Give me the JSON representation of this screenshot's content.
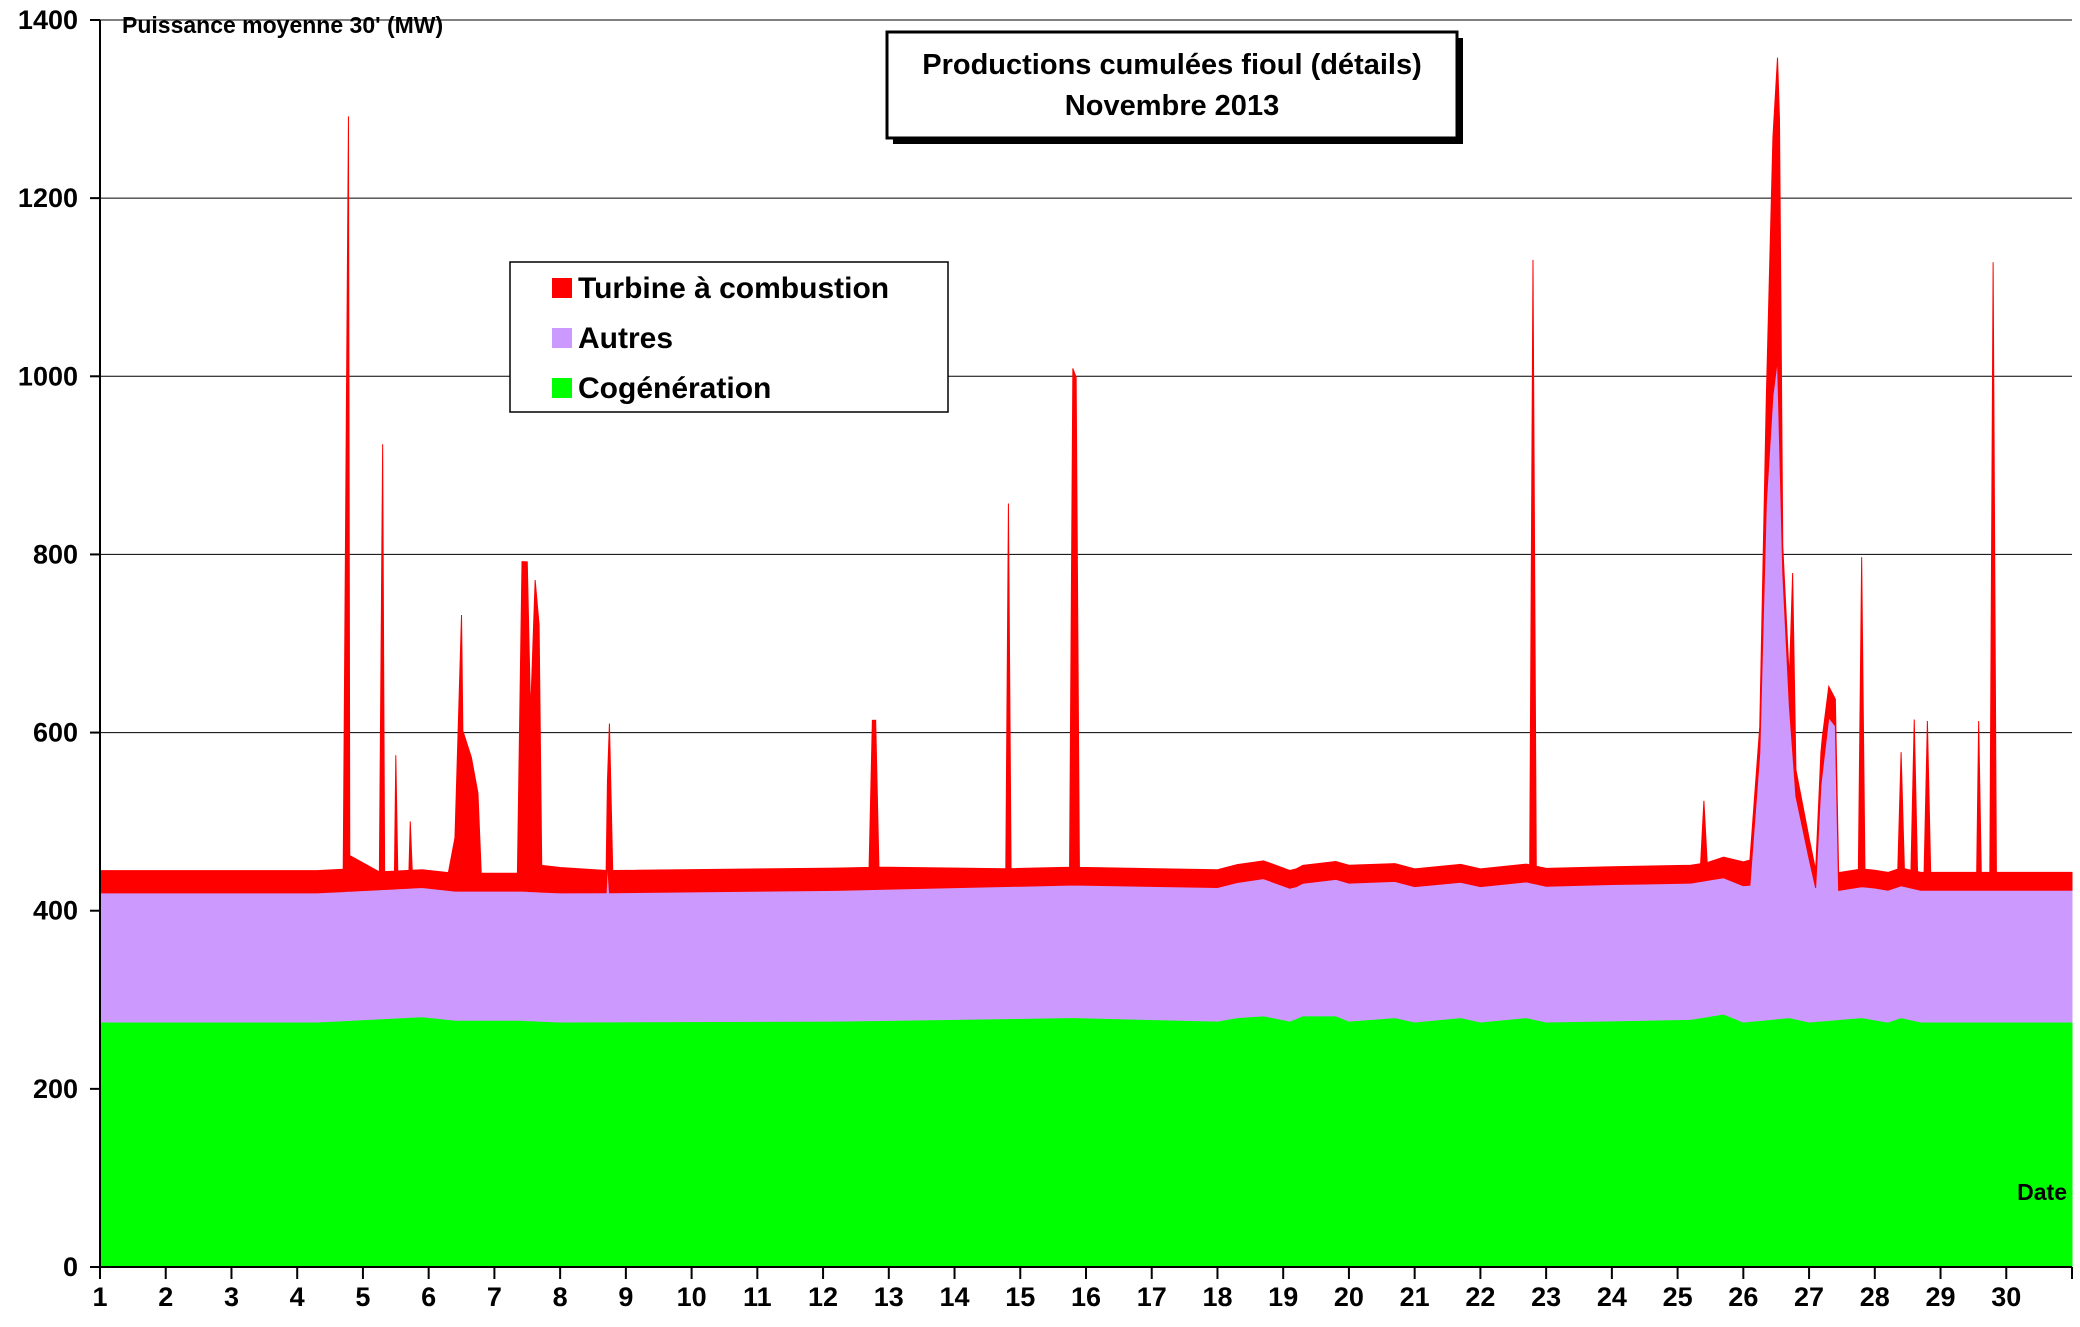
{
  "chart_data": {
    "type": "area",
    "stacked": true,
    "title": "Productions cumulées fioul (détails)",
    "subtitle": "Novembre  2013",
    "ylabel": "Puissance moyenne 30' (MW)",
    "xlabel": "Date",
    "ylim": [
      0,
      1400
    ],
    "yticks": [
      0,
      200,
      400,
      600,
      800,
      1000,
      1200,
      1400
    ],
    "xlim": [
      1,
      31
    ],
    "xticks": [
      1,
      2,
      3,
      4,
      5,
      6,
      7,
      8,
      9,
      10,
      11,
      12,
      13,
      14,
      15,
      16,
      17,
      18,
      19,
      20,
      21,
      22,
      23,
      24,
      25,
      26,
      27,
      28,
      29,
      30
    ],
    "grid": "horizontal",
    "legend_position": "upper-left inside plot",
    "series": [
      {
        "name": "Cogénération",
        "color": "#00ff00",
        "points": [
          [
            1,
            275
          ],
          [
            4.3,
            275
          ],
          [
            5.9,
            281
          ],
          [
            6.4,
            277
          ],
          [
            7.4,
            277
          ],
          [
            8,
            275
          ],
          [
            12.2,
            276
          ],
          [
            15.8,
            280
          ],
          [
            18,
            276
          ],
          [
            18.3,
            280
          ],
          [
            18.7,
            282
          ],
          [
            19.1,
            276
          ],
          [
            19.3,
            282
          ],
          [
            19.8,
            282
          ],
          [
            20,
            276
          ],
          [
            20.7,
            280
          ],
          [
            21,
            275
          ],
          [
            21.7,
            280
          ],
          [
            22,
            275
          ],
          [
            22.7,
            280
          ],
          [
            23,
            275
          ],
          [
            25.2,
            278
          ],
          [
            25.7,
            284
          ],
          [
            26,
            275
          ],
          [
            26.7,
            280
          ],
          [
            27,
            275
          ],
          [
            27.8,
            280
          ],
          [
            28.2,
            275
          ],
          [
            28.4,
            280
          ],
          [
            28.7,
            275
          ],
          [
            31,
            275
          ]
        ]
      },
      {
        "name": "Autres",
        "color": "#cc99ff",
        "points": [
          [
            1,
            145
          ],
          [
            8.7,
            145
          ],
          [
            8.72,
            180
          ],
          [
            8.75,
            145
          ],
          [
            18,
            150
          ],
          [
            18.7,
            154
          ],
          [
            19.2,
            148
          ],
          [
            20,
            155
          ],
          [
            21,
            152
          ],
          [
            22,
            152
          ],
          [
            24,
            153
          ],
          [
            25,
            153
          ],
          [
            26.1,
            153
          ],
          [
            26.25,
            300
          ],
          [
            26.35,
            580
          ],
          [
            26.45,
            700
          ],
          [
            26.52,
            740
          ],
          [
            26.6,
            500
          ],
          [
            26.7,
            350
          ],
          [
            26.8,
            250
          ],
          [
            27.1,
            150
          ],
          [
            27.18,
            265
          ],
          [
            27.3,
            340
          ],
          [
            27.4,
            330
          ],
          [
            27.45,
            145
          ],
          [
            28,
            148
          ],
          [
            31,
            148
          ]
        ]
      },
      {
        "name": "Turbine à combustion",
        "color": "#ff0000",
        "points": [
          [
            1,
            25
          ],
          [
            4.7,
            25
          ],
          [
            4.75,
            560
          ],
          [
            4.78,
            870
          ],
          [
            4.8,
            40
          ],
          [
            5.25,
            20
          ],
          [
            5.3,
            500
          ],
          [
            5.33,
            20
          ],
          [
            5.48,
            20
          ],
          [
            5.5,
            150
          ],
          [
            5.53,
            20
          ],
          [
            5.7,
            20
          ],
          [
            5.72,
            75
          ],
          [
            5.75,
            20
          ],
          [
            6.3,
            20
          ],
          [
            6.4,
            60
          ],
          [
            6.5,
            310
          ],
          [
            6.52,
            180
          ],
          [
            6.65,
            150
          ],
          [
            6.75,
            110
          ],
          [
            6.8,
            20
          ],
          [
            7.35,
            20
          ],
          [
            7.42,
            370
          ],
          [
            7.5,
            370
          ],
          [
            7.55,
            200
          ],
          [
            7.62,
            350
          ],
          [
            7.68,
            300
          ],
          [
            7.72,
            30
          ],
          [
            8.7,
            25
          ],
          [
            8.75,
            190
          ],
          [
            8.8,
            25
          ],
          [
            12.7,
            25
          ],
          [
            12.75,
            190
          ],
          [
            12.8,
            190
          ],
          [
            12.85,
            25
          ],
          [
            14.78,
            20
          ],
          [
            14.82,
            430
          ],
          [
            14.86,
            20
          ],
          [
            15.75,
            20
          ],
          [
            15.8,
            580
          ],
          [
            15.85,
            570
          ],
          [
            15.9,
            20
          ],
          [
            22.75,
            20
          ],
          [
            22.8,
            700
          ],
          [
            22.85,
            20
          ],
          [
            25.35,
            20
          ],
          [
            25.4,
            90
          ],
          [
            25.45,
            20
          ],
          [
            26.25,
            30
          ],
          [
            26.35,
            120
          ],
          [
            26.45,
            290
          ],
          [
            26.55,
            360
          ],
          [
            26.6,
            30
          ],
          [
            26.7,
            30
          ],
          [
            26.75,
            200
          ],
          [
            26.8,
            30
          ],
          [
            27.1,
            20
          ],
          [
            27.2,
            40
          ],
          [
            27.4,
            30
          ],
          [
            27.45,
            20
          ],
          [
            27.75,
            20
          ],
          [
            27.8,
            370
          ],
          [
            27.85,
            20
          ],
          [
            28.35,
            20
          ],
          [
            28.4,
            150
          ],
          [
            28.45,
            20
          ],
          [
            28.55,
            20
          ],
          [
            28.6,
            190
          ],
          [
            28.65,
            20
          ],
          [
            28.75,
            20
          ],
          [
            28.8,
            190
          ],
          [
            28.85,
            20
          ],
          [
            29.55,
            20
          ],
          [
            29.58,
            190
          ],
          [
            29.62,
            20
          ],
          [
            29.75,
            20
          ],
          [
            29.8,
            705
          ],
          [
            29.85,
            20
          ],
          [
            31,
            20
          ]
        ]
      }
    ]
  }
}
